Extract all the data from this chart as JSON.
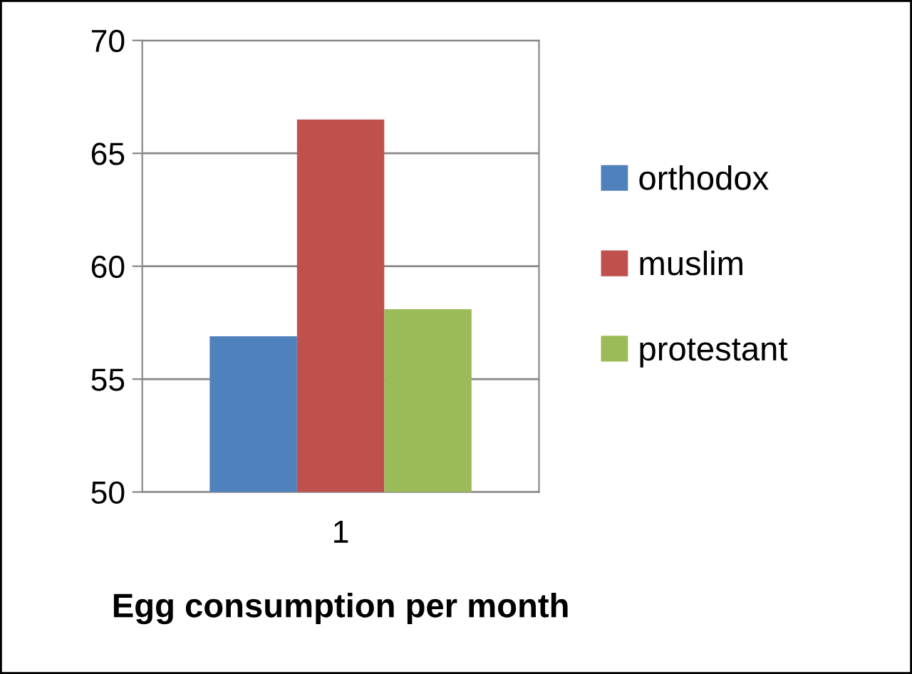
{
  "chart_data": {
    "type": "bar",
    "xlabel": "Egg consumption per month",
    "categories": [
      "1"
    ],
    "series": [
      {
        "name": "orthodox",
        "color": "#4f81bd",
        "values": [
          56.9
        ]
      },
      {
        "name": "muslim",
        "color": "#c0504d",
        "values": [
          66.5
        ]
      },
      {
        "name": "protestant",
        "color": "#9bbb59",
        "values": [
          58.1
        ]
      }
    ],
    "ylim": [
      50,
      70
    ],
    "yticks": [
      50,
      55,
      60,
      65,
      70
    ],
    "grid": "y",
    "legend": "right"
  }
}
